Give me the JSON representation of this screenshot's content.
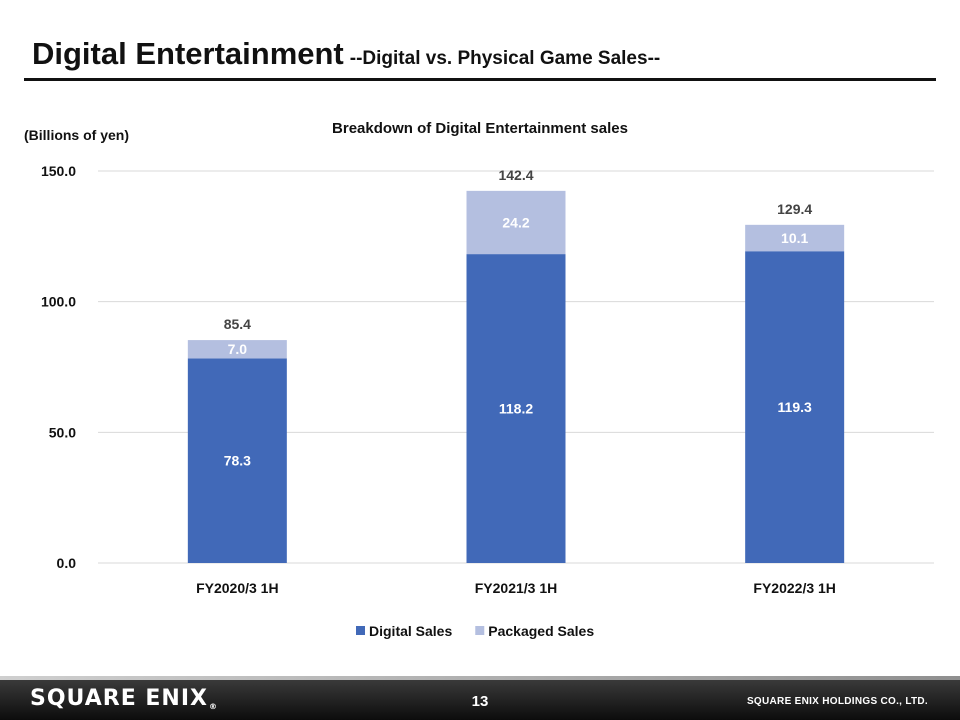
{
  "slide": {
    "title": "Digital Entertainment",
    "subtitle": "--Digital vs. Physical Game Sales--",
    "page_number": "13",
    "logo_text": "SQUARE ENIX",
    "logo_mark": "®",
    "company": "SQUARE ENIX HOLDINGS CO., LTD."
  },
  "chart_data": {
    "type": "bar",
    "stacked": true,
    "title": "Breakdown of Digital Entertainment sales",
    "unit_label": "(Billions of yen)",
    "categories": [
      "FY2020/3 1H",
      "FY2021/3 1H",
      "FY2022/3 1H"
    ],
    "series": [
      {
        "name": "Digital Sales",
        "values": [
          78.3,
          118.2,
          119.3
        ],
        "labels": [
          "78.3",
          "118.2",
          "119.3"
        ],
        "color": "#4169b8",
        "label_color": "#ffffff"
      },
      {
        "name": "Packaged Sales",
        "values": [
          7.0,
          24.2,
          10.1
        ],
        "labels": [
          "7.0",
          "24.2",
          "10.1"
        ],
        "color": "#b4bfe0",
        "label_color": "#ffffff"
      }
    ],
    "totals": [
      85.4,
      142.4,
      129.4
    ],
    "total_labels": [
      "85.4",
      "142.4",
      "129.4"
    ],
    "ylim": [
      0,
      150
    ],
    "yticks": [
      0,
      50,
      100,
      150
    ],
    "ytick_labels": [
      "0.0",
      "50.0",
      "100.0",
      "150.0"
    ],
    "grid": true,
    "legend": "bottom"
  }
}
